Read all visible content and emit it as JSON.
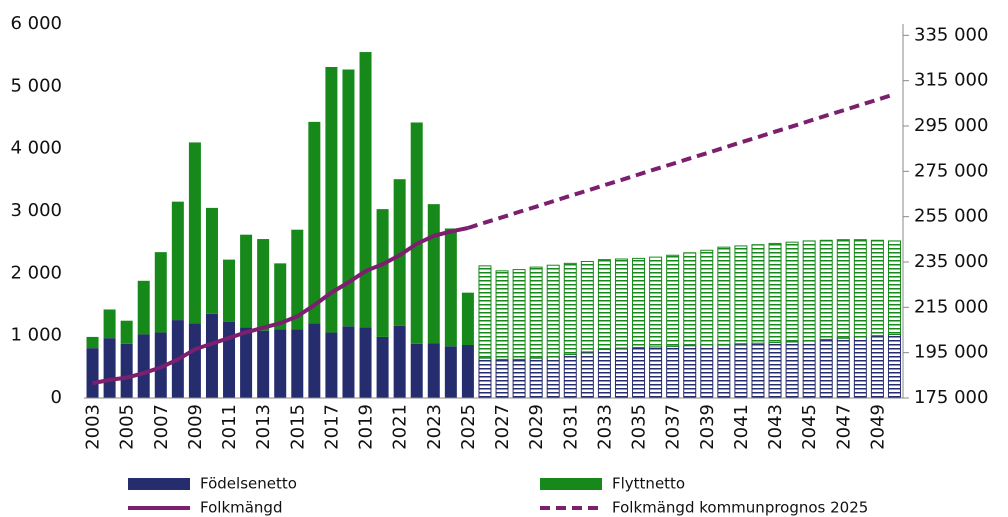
{
  "chart_data": {
    "type": "bar",
    "categories": [
      "2003",
      null,
      "2005",
      null,
      "2007",
      null,
      "2009",
      null,
      "2011",
      null,
      "2013",
      null,
      "2015",
      null,
      "2017",
      null,
      "2019",
      null,
      "2021",
      null,
      "2023",
      null,
      "2025",
      null,
      "2027",
      null,
      "2029",
      null,
      "2031",
      null,
      "2033",
      null,
      "2035",
      null,
      "2037",
      null,
      "2039",
      null,
      "2041",
      null,
      "2043",
      null,
      "2045",
      null,
      "2047",
      null,
      "2049",
      null
    ],
    "series": [
      {
        "name": "Födelsenetto",
        "color": "#262d6e",
        "values": [
          800,
          960,
          870,
          1020,
          1050,
          1250,
          1200,
          1350,
          1220,
          1130,
          1080,
          1100,
          1100,
          1200,
          1050,
          1150,
          1130,
          980,
          1160,
          870,
          880,
          830,
          850,
          640,
          620,
          620,
          640,
          660,
          700,
          740,
          780,
          800,
          810,
          820,
          830,
          840,
          850,
          860,
          870,
          880,
          890,
          900,
          920,
          940,
          960,
          980,
          1000,
          1020
        ]
      },
      {
        "name": "Flyttnetto",
        "color": "#16891a",
        "values": [
          180,
          460,
          370,
          860,
          1290,
          1900,
          2900,
          1700,
          1000,
          1490,
          1470,
          1060,
          1600,
          3230,
          4260,
          4120,
          4420,
          2050,
          2350,
          3550,
          2230,
          1890,
          840,
          1480,
          1420,
          1440,
          1460,
          1470,
          1460,
          1450,
          1440,
          1430,
          1430,
          1440,
          1460,
          1490,
          1520,
          1560,
          1570,
          1580,
          1590,
          1600,
          1600,
          1590,
          1580,
          1560,
          1530,
          1500
        ]
      },
      {
        "name": "Folkmängd",
        "type": "line",
        "axis": "y2",
        "color": "#7b1f6e",
        "values": [
          181500,
          183000,
          184000,
          186000,
          188500,
          192000,
          196500,
          199000,
          201500,
          204000,
          206000,
          208000,
          211000,
          216000,
          221500,
          226000,
          231000,
          234000,
          238000,
          243000,
          246500,
          248500,
          250000,
          null,
          null,
          null,
          null,
          null,
          null,
          null,
          null,
          null,
          null,
          null,
          null,
          null,
          null,
          null,
          null,
          null,
          null,
          null,
          null,
          null,
          null,
          null,
          null,
          null
        ]
      },
      {
        "name": "Folkmängd kommunprognos 2025",
        "type": "line",
        "dashed": true,
        "axis": "y2",
        "color": "#7b1f6e",
        "values": [
          null,
          null,
          null,
          null,
          null,
          null,
          null,
          null,
          null,
          null,
          null,
          null,
          null,
          null,
          null,
          null,
          null,
          null,
          null,
          null,
          null,
          null,
          250000,
          252400,
          254700,
          257100,
          259400,
          261800,
          264200,
          266500,
          268900,
          271200,
          273600,
          276000,
          278300,
          280700,
          283000,
          285400,
          287800,
          290100,
          292500,
          294800,
          297200,
          299600,
          301900,
          304300,
          306600,
          309000
        ]
      }
    ],
    "ylim": [
      0,
      6000
    ],
    "yticks": [
      0,
      {
        "value": 1000,
        "label": "1 000"
      },
      {
        "value": 2000,
        "label": "2 000"
      },
      {
        "value": 3000,
        "label": "3 000"
      },
      {
        "value": 4000,
        "label": "4 000"
      },
      {
        "value": 5000,
        "label": "5 000"
      },
      {
        "value": 6000,
        "label": "6 000"
      }
    ],
    "y2lim": [
      175000,
      340000
    ],
    "y2ticks": [
      {
        "value": 175000,
        "label": "175 000"
      },
      {
        "value": 195000,
        "label": "195 000"
      },
      {
        "value": 215000,
        "label": "215 000"
      },
      {
        "value": 235000,
        "label": "235 000"
      },
      {
        "value": 255000,
        "label": "255 000"
      },
      {
        "value": 275000,
        "label": "275 000"
      },
      {
        "value": 295000,
        "label": "295 000"
      },
      {
        "value": 315000,
        "label": "315 000"
      },
      {
        "value": 335000,
        "label": "335 000"
      }
    ],
    "grid": false
  }
}
